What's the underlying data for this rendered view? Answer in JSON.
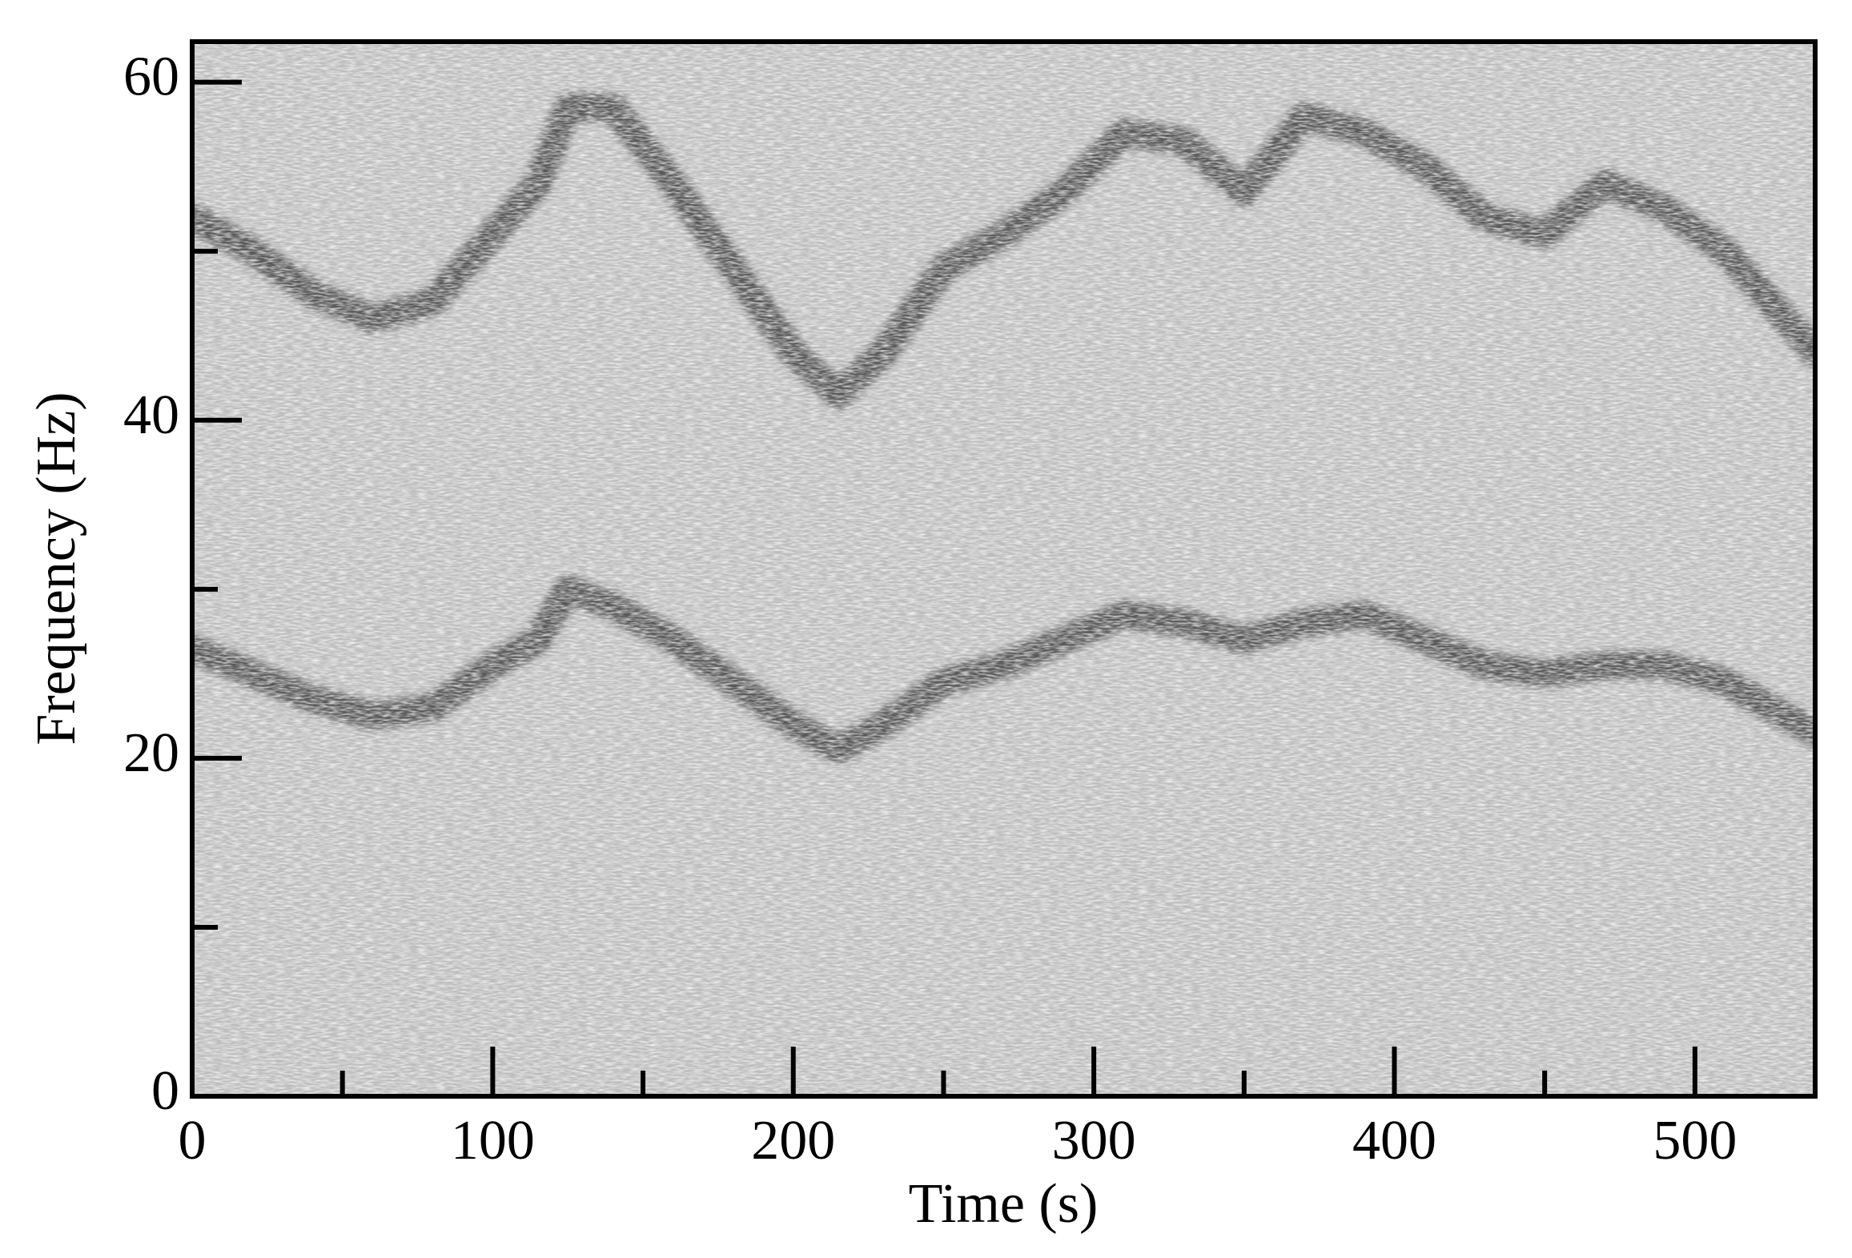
{
  "chart_data": {
    "type": "spectrogram",
    "xlabel": "Time (s)",
    "ylabel": "Frequency (Hz)",
    "xlim": [
      0,
      540
    ],
    "ylim": [
      0,
      62.4
    ],
    "xticks": [
      0,
      100,
      200,
      300,
      400,
      500
    ],
    "xminor": [
      50,
      150,
      250,
      350,
      450
    ],
    "yticks": [
      0,
      20,
      40,
      60
    ],
    "yminor": [
      10,
      30,
      50
    ],
    "x": [
      0,
      20,
      40,
      60,
      80,
      100,
      115,
      125,
      140,
      160,
      180,
      200,
      215,
      230,
      250,
      270,
      290,
      310,
      330,
      350,
      370,
      390,
      410,
      430,
      450,
      470,
      490,
      510,
      530,
      540
    ],
    "series": [
      {
        "color": "#585858",
        "values": [
          26.5,
          25,
          23.5,
          22.5,
          23,
          25.5,
          27,
          30,
          29,
          27,
          24.5,
          22,
          20.5,
          22,
          24.5,
          25.5,
          27,
          28.5,
          28,
          27,
          28,
          28.5,
          27,
          25.5,
          25,
          25.5,
          25.5,
          24.5,
          22.5,
          21.5
        ]
      },
      {
        "color": "#585858",
        "values": [
          52,
          50,
          47.5,
          46,
          47,
          51,
          54,
          58.5,
          58.5,
          54,
          49,
          44,
          41.5,
          44,
          49,
          51,
          53.5,
          57,
          56.5,
          53.5,
          58,
          57,
          55,
          52,
          51,
          54,
          52.5,
          50,
          46,
          44
        ]
      }
    ]
  }
}
